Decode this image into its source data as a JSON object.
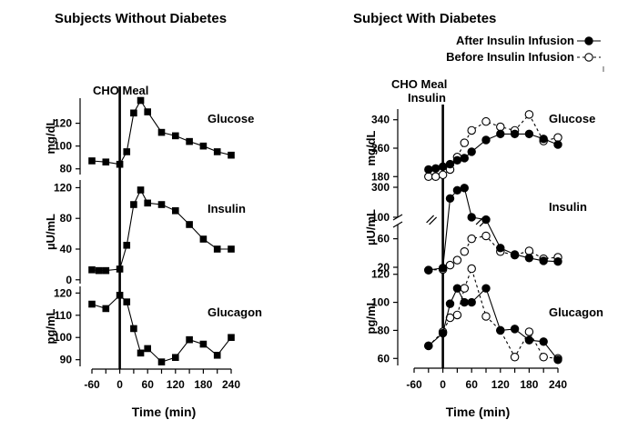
{
  "left_title": "Subjects Without Diabetes",
  "right_title": "Subject With Diabetes",
  "meal_label_left": "CHO Meal",
  "meal_label_right": "CHO Meal",
  "insulin_label_right": "Insulin",
  "legend": {
    "after": "After Insulin Infusion",
    "before": "Before Insulin Infusion"
  },
  "xlabel": "Time (min)",
  "colors": {
    "ink": "#000000",
    "background": "#ffffff"
  },
  "chart_data": [
    {
      "type": "line",
      "title": "Subjects Without Diabetes",
      "xlabel": "Time (min)",
      "xticks": [
        "-60",
        "-30",
        "0",
        "30",
        "60",
        "90",
        "120",
        "150",
        "180",
        "210",
        "240"
      ],
      "xtick_labels": [
        "-60",
        "0",
        "60",
        "120",
        "180",
        "240"
      ],
      "xlim": [
        -60,
        240
      ],
      "meal_time": 0,
      "panels": [
        {
          "label": "Glucose",
          "ylabel": "mg/dL",
          "ylim": [
            75,
            142
          ],
          "yticks": [
            "80",
            "100",
            "120"
          ],
          "series": [
            {
              "name": "Glucose",
              "marker": "square",
              "x": [
                -60,
                -30,
                0,
                15,
                30,
                45,
                60,
                90,
                120,
                150,
                180,
                210,
                240
              ],
              "y": [
                87,
                86,
                84,
                95,
                129,
                140,
                130,
                112,
                109,
                104,
                100,
                95,
                92
              ]
            }
          ]
        },
        {
          "label": "Insulin",
          "ylabel": "µU/mL",
          "ylim": [
            -5,
            130
          ],
          "yticks": [
            "0",
            "40",
            "80",
            "120"
          ],
          "series": [
            {
              "name": "Insulin",
              "marker": "square",
              "x": [
                -60,
                -45,
                -30,
                0,
                15,
                30,
                45,
                60,
                90,
                120,
                150,
                180,
                210,
                240
              ],
              "y": [
                13,
                12,
                12,
                14,
                45,
                98,
                117,
                100,
                98,
                90,
                72,
                53,
                40,
                40
              ]
            }
          ]
        },
        {
          "label": "Glucagon",
          "ylabel": "pg/mL",
          "ylim": [
            87,
            123
          ],
          "yticks": [
            "90",
            "100",
            "110",
            "120"
          ],
          "series": [
            {
              "name": "Glucagon",
              "marker": "square",
              "x": [
                -60,
                -30,
                0,
                15,
                30,
                45,
                60,
                90,
                120,
                150,
                180,
                210,
                240
              ],
              "y": [
                115,
                113,
                119,
                116,
                104,
                93,
                95,
                89,
                91,
                99,
                97,
                92,
                100
              ]
            }
          ]
        }
      ]
    },
    {
      "type": "line",
      "title": "Subject With Diabetes",
      "xlabel": "Time (min)",
      "xticks": [
        "-60",
        "-30",
        "0",
        "30",
        "60",
        "90",
        "120",
        "150",
        "180",
        "210",
        "240"
      ],
      "xtick_labels": [
        "-60",
        "0",
        "60",
        "120",
        "180",
        "240"
      ],
      "xlim": [
        -60,
        240
      ],
      "meal_time": 0,
      "legend": [
        "After Insulin Infusion",
        "Before Insulin Infusion"
      ],
      "legend_position": "top-right",
      "panels": [
        {
          "label": "Glucose",
          "ylabel": "mg/dL",
          "ylim": [
            150,
            370
          ],
          "yticks": [
            "180",
            "260",
            "340"
          ],
          "series": [
            {
              "name": "After Insulin Infusion",
              "marker": "filled-circle",
              "style": "solid",
              "x": [
                -30,
                -15,
                0,
                15,
                30,
                45,
                60,
                90,
                120,
                150,
                180,
                210,
                240
              ],
              "y": [
                200,
                203,
                208,
                215,
                226,
                232,
                250,
                283,
                300,
                300,
                300,
                286,
                270
              ]
            },
            {
              "name": "Before Insulin Infusion",
              "marker": "open-circle",
              "style": "dashed",
              "x": [
                -30,
                -15,
                0,
                15,
                30,
                45,
                60,
                90,
                120,
                150,
                180,
                210,
                240
              ],
              "y": [
                180,
                180,
                185,
                200,
                235,
                275,
                310,
                335,
                320,
                310,
                355,
                280,
                290
              ]
            }
          ]
        },
        {
          "label": "Insulin",
          "ylabel": "µU/mL",
          "ylim": [
            20,
            300
          ],
          "yticks": [
            "20",
            "60",
            "100",
            "300"
          ],
          "axis_break": [
            80,
            100
          ],
          "series": [
            {
              "name": "After Insulin Infusion",
              "marker": "filled-circle",
              "style": "solid",
              "x": [
                -30,
                0,
                15,
                30,
                45,
                60,
                90,
                120,
                150,
                180,
                210,
                240
              ],
              "y": [
                16,
                19,
                225,
                280,
                295,
                100,
                84,
                47,
                38,
                33,
                29,
                28
              ]
            },
            {
              "name": "Before Insulin Infusion",
              "marker": "open-circle",
              "style": "dashed",
              "x": [
                -30,
                0,
                15,
                30,
                45,
                60,
                90,
                120,
                150,
                180,
                210,
                240
              ],
              "y": [
                16,
                17,
                23,
                30,
                42,
                60,
                64,
                42,
                37,
                43,
                32,
                34
              ]
            }
          ]
        },
        {
          "label": "Glucagon",
          "ylabel": "pg/mL",
          "ylim": [
            55,
            125
          ],
          "yticks": [
            "60",
            "80",
            "100",
            "120"
          ],
          "series": [
            {
              "name": "After Insulin Infusion",
              "marker": "filled-circle",
              "style": "solid",
              "x": [
                -30,
                0,
                15,
                30,
                45,
                60,
                90,
                120,
                150,
                180,
                210,
                240
              ],
              "y": [
                69,
                78,
                99,
                110,
                100,
                100,
                110,
                80,
                81,
                73,
                72,
                59
              ]
            },
            {
              "name": "Before Insulin Infusion",
              "marker": "open-circle",
              "style": "dashed",
              "x": [
                -30,
                0,
                15,
                30,
                45,
                60,
                90,
                120,
                150,
                180,
                210,
                240
              ],
              "y": [
                69,
                79,
                89,
                91,
                110,
                124,
                90,
                80,
                61,
                79,
                61,
                60
              ]
            }
          ]
        }
      ]
    }
  ]
}
